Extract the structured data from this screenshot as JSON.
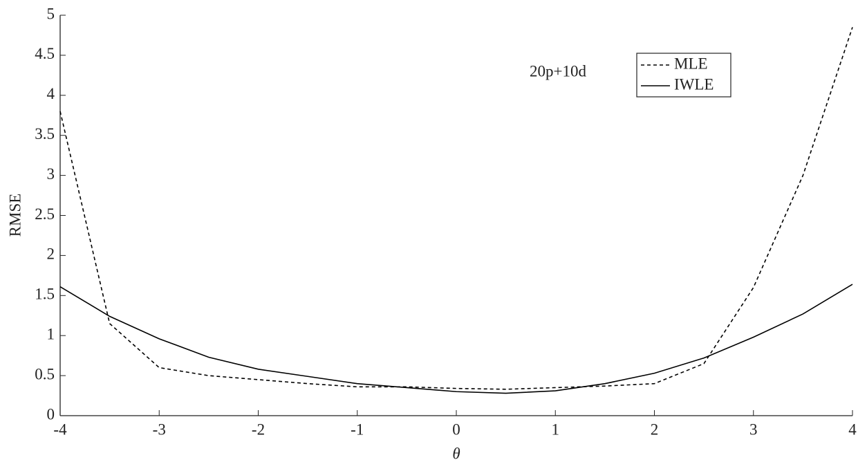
{
  "chart_data": {
    "type": "line",
    "xlabel": "θ",
    "ylabel": "RMSE",
    "annotation": "20p+10d",
    "x": [
      -4,
      -3.5,
      -3,
      -2.5,
      -2,
      -1.5,
      -1,
      -0.5,
      0,
      0.5,
      1,
      1.5,
      2,
      2.5,
      3,
      3.5,
      4
    ],
    "series": [
      {
        "name": "MLE",
        "color": "#000000",
        "line_style": "dashed",
        "values": [
          3.8,
          1.15,
          0.6,
          0.5,
          0.45,
          0.4,
          0.36,
          0.36,
          0.34,
          0.33,
          0.35,
          0.37,
          0.4,
          0.65,
          1.6,
          3.0,
          4.85
        ]
      },
      {
        "name": "IWLE",
        "color": "#000000",
        "line_style": "solid",
        "values": [
          1.61,
          1.24,
          0.96,
          0.73,
          0.58,
          0.49,
          0.4,
          0.35,
          0.3,
          0.28,
          0.31,
          0.4,
          0.53,
          0.72,
          0.98,
          1.27,
          1.64
        ]
      }
    ],
    "xlim": [
      -4,
      4
    ],
    "xticks": [
      -4,
      -3,
      -2,
      -1,
      0,
      1,
      2,
      3,
      4
    ],
    "ylim": [
      0,
      5
    ],
    "yticks": [
      0,
      0.5,
      1,
      1.5,
      2,
      2.5,
      3,
      3.5,
      4,
      4.5,
      5
    ],
    "legend": "upper-right",
    "grid": false
  }
}
